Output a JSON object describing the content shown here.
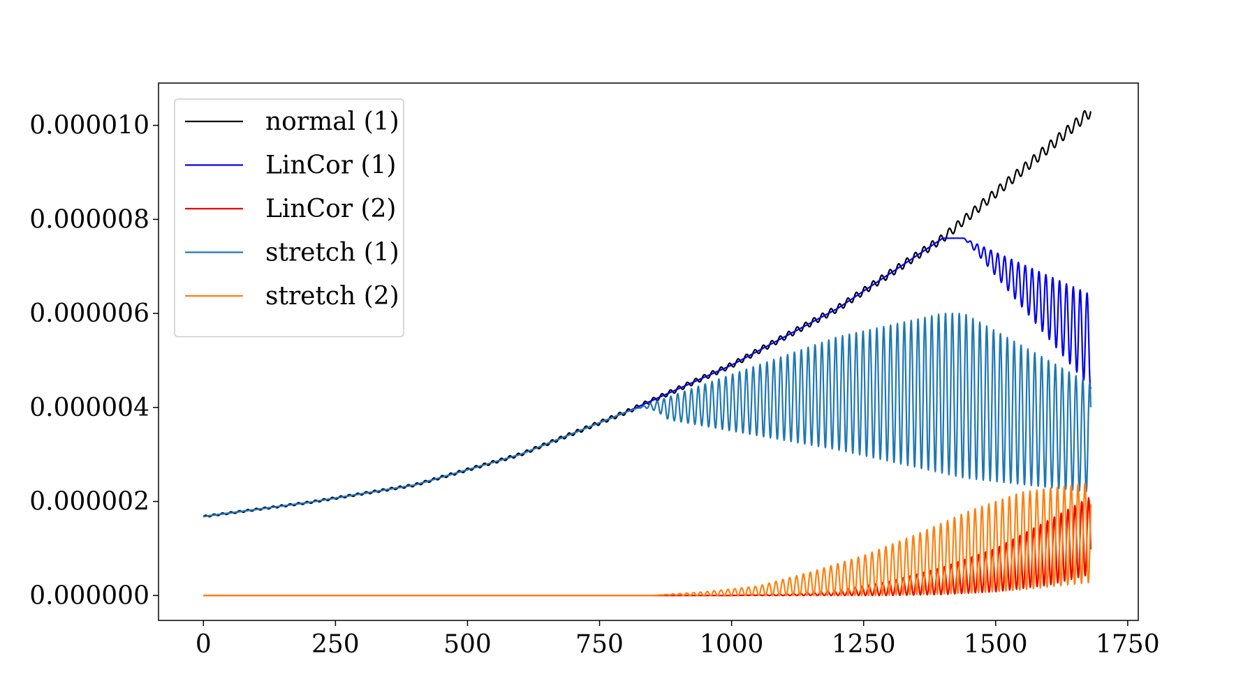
{
  "chart_data": {
    "type": "line",
    "title": "",
    "xlabel": "",
    "ylabel": "",
    "xlim": [
      -85,
      1770
    ],
    "ylim": [
      -5.3e-07,
      1.09e-05
    ],
    "x_ticks": [
      0,
      250,
      500,
      750,
      1000,
      1250,
      1500,
      1750
    ],
    "x_tick_labels": [
      "0",
      "250",
      "500",
      "750",
      "1000",
      "1250",
      "1500",
      "1750"
    ],
    "y_ticks": [
      0,
      2e-06,
      4e-06,
      6e-06,
      8e-06,
      1e-05
    ],
    "y_tick_labels": [
      "0.000000",
      "0.000002",
      "0.000004",
      "0.000006",
      "0.000008",
      "0.000010"
    ],
    "grid": false,
    "legend_position": "top-left",
    "x_range": [
      0,
      1680
    ],
    "series": [
      {
        "name": "normal (1)",
        "color": "#000000",
        "envelope": {
          "x": [
            0,
            200,
            400,
            600,
            800,
            1000,
            1200,
            1400,
            1680
          ],
          "upper": [
            1.68e-06,
            1.98e-06,
            2.35e-06,
            3e-06,
            3.9e-06,
            4.9e-06,
            6.1e-06,
            7.6e-06,
            1.03e-05
          ]
        },
        "oscillation": {
          "start_x": 0,
          "period": 16,
          "amplitude_fraction": 0.012
        }
      },
      {
        "name": "LinCor (1)",
        "color": "#0000ee",
        "envelope": {
          "x": [
            0,
            200,
            400,
            600,
            800,
            1000,
            1200,
            1400,
            1440,
            1680
          ],
          "upper": [
            1.68e-06,
            1.98e-06,
            2.35e-06,
            3e-06,
            3.9e-06,
            4.9e-06,
            6.1e-06,
            7.6e-06,
            7.6e-06,
            6.4e-06
          ],
          "lower": [
            1.68e-06,
            1.98e-06,
            2.35e-06,
            3e-06,
            3.9e-06,
            4.9e-06,
            6.1e-06,
            7.6e-06,
            7.6e-06,
            4.4e-06
          ]
        },
        "oscillation": {
          "start_x": 880,
          "period": 13
        }
      },
      {
        "name": "LinCor (2)",
        "color": "#ee0000",
        "envelope": {
          "x": [
            0,
            1000,
            1100,
            1200,
            1300,
            1400,
            1500,
            1600,
            1680
          ],
          "upper": [
            0,
            0,
            3e-08,
            1e-07,
            3e-07,
            6e-07,
            1e-06,
            1.6e-06,
            2.1e-06
          ],
          "lower": [
            0,
            0,
            0,
            0,
            0,
            2e-08,
            8e-08,
            2.2e-07,
            4.5e-07
          ]
        },
        "oscillation": {
          "start_x": 1000,
          "period": 13
        }
      },
      {
        "name": "stretch (1)",
        "color": "#1f77b4",
        "envelope": {
          "x": [
            0,
            200,
            400,
            600,
            800,
            1000,
            1200,
            1400,
            1440,
            1680
          ],
          "upper": [
            1.68e-06,
            1.98e-06,
            2.35e-06,
            3e-06,
            3.9e-06,
            4.7e-06,
            5.5e-06,
            6e-06,
            6e-06,
            4.5e-06
          ],
          "lower": [
            1.68e-06,
            1.98e-06,
            2.35e-06,
            3e-06,
            3.9e-06,
            3.5e-06,
            3.1e-06,
            2.6e-06,
            2.5e-06,
            2.2e-06
          ]
        },
        "oscillation": {
          "start_x": 820,
          "period": 13
        }
      },
      {
        "name": "stretch (2)",
        "color": "#ff7f0e",
        "envelope": {
          "x": [
            0,
            850,
            950,
            1050,
            1150,
            1250,
            1350,
            1450,
            1550,
            1680
          ],
          "upper": [
            0,
            0,
            8e-08,
            2e-07,
            5e-07,
            8.5e-07,
            1.3e-06,
            1.8e-06,
            2.2e-06,
            2.4e-06
          ],
          "lower": [
            0,
            0,
            0,
            0,
            0,
            0,
            2e-08,
            5e-08,
            1.2e-07,
            2.8e-07
          ]
        },
        "oscillation": {
          "start_x": 850,
          "period": 13
        }
      }
    ]
  }
}
